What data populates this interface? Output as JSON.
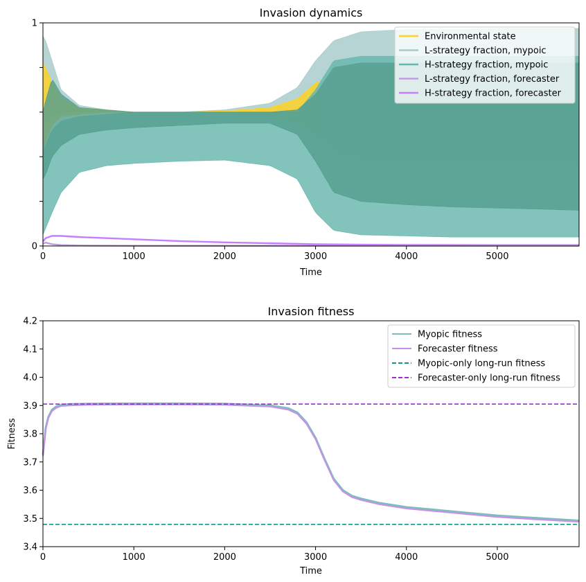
{
  "chart_data": [
    {
      "type": "area",
      "title": "Invasion dynamics",
      "xlabel": "Time",
      "ylabel": "",
      "xlim": [
        0,
        5900
      ],
      "ylim": [
        0,
        1
      ],
      "grid": false,
      "legend_placement": "top-right",
      "xticks": [
        0,
        1000,
        2000,
        3000,
        4000,
        5000
      ],
      "yticks": [
        0,
        0.2,
        0.4,
        0.6,
        0.8,
        1
      ],
      "ytick_labels": [
        "0",
        "",
        "",
        "",
        "",
        "1"
      ],
      "legend": [
        {
          "name": "Environmental state",
          "color": "#ffd21f"
        },
        {
          "name": "L-strategy fraction, mypoic",
          "color": "#a6cbcb"
        },
        {
          "name": "H-strategy fraction, mypoic",
          "color": "#66b7ad"
        },
        {
          "name": "L-strategy fraction, forecaster",
          "color": "#bf9ee0"
        },
        {
          "name": "H-strategy fraction, forecaster",
          "color": "#c77dff"
        }
      ],
      "series": [
        {
          "role": "band",
          "color": "#a6cbcb",
          "x": [
            0,
            30,
            100,
            200,
            400,
            700,
            1000,
            1500,
            2000,
            2500,
            2800,
            3000,
            3200,
            3500,
            4000,
            4500,
            5000,
            5500,
            5900
          ],
          "upper": [
            0.94,
            0.92,
            0.83,
            0.7,
            0.63,
            0.61,
            0.6,
            0.6,
            0.61,
            0.64,
            0.71,
            0.83,
            0.92,
            0.96,
            0.97,
            0.97,
            0.975,
            0.975,
            0.975
          ],
          "lower": [
            0.55,
            0.55,
            0.58,
            0.6,
            0.6,
            0.6,
            0.6,
            0.6,
            0.6,
            0.6,
            0.58,
            0.5,
            0.42,
            0.38,
            0.37,
            0.37,
            0.37,
            0.37,
            0.37
          ]
        },
        {
          "role": "band",
          "color": "#ffd21f",
          "x": [
            0,
            30,
            100,
            200,
            400,
            700,
            1000,
            1500,
            2000,
            2500,
            2800,
            3000,
            3050
          ],
          "upper": [
            0.82,
            0.8,
            0.73,
            0.66,
            0.62,
            0.61,
            0.6,
            0.6,
            0.605,
            0.62,
            0.66,
            0.73,
            0.74
          ],
          "lower": [
            0.42,
            0.47,
            0.54,
            0.58,
            0.59,
            0.6,
            0.6,
            0.6,
            0.595,
            0.58,
            0.55,
            0.5,
            0.5
          ]
        },
        {
          "role": "band",
          "color": "#66b7ad",
          "x": [
            0,
            30,
            100,
            200,
            400,
            700,
            1000,
            1500,
            2000,
            2500,
            2800,
            3000,
            3200,
            3500,
            4000,
            4500,
            5000,
            5500,
            5900
          ],
          "upper": [
            0.42,
            0.45,
            0.52,
            0.56,
            0.58,
            0.59,
            0.6,
            0.6,
            0.6,
            0.6,
            0.6,
            0.7,
            0.83,
            0.85,
            0.85,
            0.85,
            0.85,
            0.85,
            0.85
          ],
          "lower": [
            0.05,
            0.08,
            0.15,
            0.24,
            0.33,
            0.36,
            0.37,
            0.38,
            0.385,
            0.36,
            0.3,
            0.15,
            0.07,
            0.05,
            0.045,
            0.04,
            0.04,
            0.04,
            0.04
          ]
        },
        {
          "role": "band",
          "color": "#559f8f",
          "x": [
            0,
            30,
            100,
            200,
            400,
            700,
            1000,
            1500,
            2000,
            2500,
            2800,
            3000,
            3200,
            3500,
            4000,
            4500,
            5000,
            5500,
            5900
          ],
          "upper": [
            0.6,
            0.65,
            0.75,
            0.68,
            0.62,
            0.61,
            0.6,
            0.6,
            0.6,
            0.6,
            0.61,
            0.68,
            0.8,
            0.82,
            0.82,
            0.82,
            0.82,
            0.82,
            0.82
          ],
          "lower": [
            0.3,
            0.32,
            0.4,
            0.45,
            0.5,
            0.52,
            0.53,
            0.54,
            0.55,
            0.55,
            0.5,
            0.38,
            0.24,
            0.2,
            0.185,
            0.175,
            0.17,
            0.165,
            0.16
          ]
        },
        {
          "name": "H-strategy fraction, forecaster",
          "role": "line",
          "color": "#c77dff",
          "x": [
            0,
            30,
            100,
            200,
            400,
            700,
            1000,
            1500,
            2000,
            2500,
            3000,
            3500,
            4000,
            5000,
            5900
          ],
          "y": [
            0.02,
            0.035,
            0.045,
            0.045,
            0.04,
            0.035,
            0.03,
            0.022,
            0.016,
            0.012,
            0.008,
            0.006,
            0.005,
            0.004,
            0.004
          ]
        },
        {
          "name": "L-strategy fraction, forecaster",
          "role": "line",
          "color": "#bf9ee0",
          "x": [
            0,
            30,
            100,
            200,
            400,
            1000,
            2000,
            3000,
            4000,
            5900
          ],
          "y": [
            0.01,
            0.015,
            0.008,
            0.004,
            0.002,
            0.001,
            0.001,
            0.001,
            0.001,
            0.001
          ]
        }
      ]
    },
    {
      "type": "line",
      "title": "Invasion fitness",
      "xlabel": "Time",
      "ylabel": "Fitness",
      "xlim": [
        0,
        5900
      ],
      "ylim": [
        3.4,
        4.2
      ],
      "grid": false,
      "legend_placement": "top-right",
      "xticks": [
        0,
        1000,
        2000,
        3000,
        4000,
        5000
      ],
      "yticks": [
        3.4,
        3.5,
        3.6,
        3.7,
        3.8,
        3.9,
        4.0,
        4.1,
        4.2
      ],
      "ytick_labels": [
        "3.4",
        "3.5",
        "3.6",
        "3.7",
        "3.8",
        "3.9",
        "4.0",
        "4.1",
        "4.2"
      ],
      "legend": [
        {
          "name": "Myopic fitness",
          "color": "#7fbdbd",
          "style": "solid"
        },
        {
          "name": "Forecaster fitness",
          "color": "#c990ea",
          "style": "solid"
        },
        {
          "name": "Myopic-only long-run fitness",
          "color": "#12948a",
          "style": "dashed"
        },
        {
          "name": "Forecaster-only long-run fitness",
          "color": "#a526d6",
          "style": "dashed"
        }
      ],
      "series": [
        {
          "name": "Myopic fitness",
          "color": "#7fbdbd",
          "style": "solid",
          "width": 3,
          "x": [
            0,
            30,
            60,
            100,
            150,
            200,
            300,
            500,
            1000,
            1500,
            2000,
            2500,
            2700,
            2800,
            2900,
            3000,
            3100,
            3200,
            3300,
            3400,
            3500,
            3700,
            4000,
            4500,
            5000,
            5500,
            5900
          ],
          "y": [
            3.725,
            3.82,
            3.86,
            3.885,
            3.897,
            3.902,
            3.905,
            3.906,
            3.907,
            3.907,
            3.906,
            3.9,
            3.89,
            3.875,
            3.84,
            3.785,
            3.71,
            3.64,
            3.6,
            3.58,
            3.57,
            3.555,
            3.54,
            3.525,
            3.51,
            3.5,
            3.492
          ]
        },
        {
          "name": "Forecaster fitness",
          "color": "#c990ea",
          "style": "solid",
          "width": 2,
          "x": [
            0,
            30,
            60,
            100,
            150,
            200,
            300,
            500,
            1000,
            1500,
            2000,
            2500,
            2700,
            2800,
            2900,
            3000,
            3100,
            3200,
            3300,
            3400,
            3500,
            3700,
            4000,
            4500,
            5000,
            5500,
            5900
          ],
          "y": [
            3.72,
            3.815,
            3.855,
            3.88,
            3.892,
            3.898,
            3.9,
            3.902,
            3.903,
            3.903,
            3.902,
            3.896,
            3.885,
            3.87,
            3.835,
            3.78,
            3.705,
            3.635,
            3.595,
            3.575,
            3.565,
            3.55,
            3.535,
            3.52,
            3.505,
            3.495,
            3.488
          ]
        },
        {
          "name": "Myopic-only long-run fitness",
          "color": "#12948a",
          "style": "dashed",
          "width": 1.6,
          "x": [
            0,
            5900
          ],
          "y": [
            3.479,
            3.479
          ]
        },
        {
          "name": "Forecaster-only long-run fitness",
          "color": "#a526d6",
          "style": "dashed",
          "width": 1.6,
          "x": [
            0,
            5900
          ],
          "y": [
            3.905,
            3.905
          ]
        }
      ]
    }
  ]
}
